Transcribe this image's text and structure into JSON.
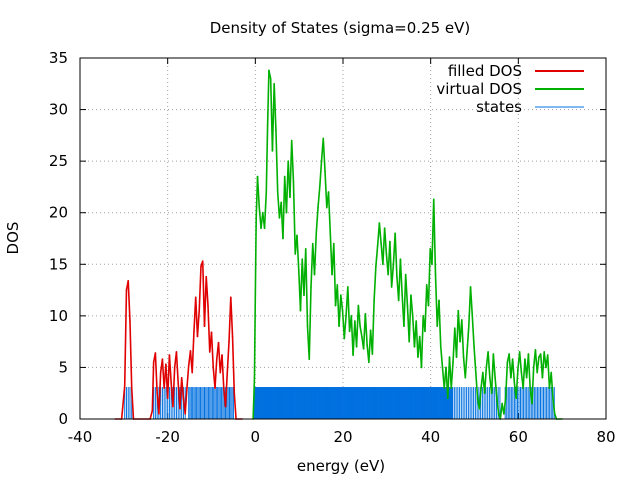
{
  "chart_data": {
    "type": "line",
    "title": "Density of States (sigma=0.25 eV)",
    "xlabel": "energy (eV)",
    "ylabel": "DOS",
    "xlim": [
      -40,
      80
    ],
    "ylim": [
      0,
      35
    ],
    "x_ticks": [
      -40,
      -20,
      0,
      20,
      40,
      60,
      80
    ],
    "y_ticks": [
      0,
      5,
      10,
      15,
      20,
      25,
      30,
      35
    ],
    "grid": true,
    "legend_position": "top-right",
    "series": [
      {
        "name": "filled DOS",
        "color": "#e00000",
        "style": "line",
        "points": [
          [
            -32,
            0
          ],
          [
            -30.5,
            0
          ],
          [
            -29.8,
            3.2
          ],
          [
            -29.4,
            12.5
          ],
          [
            -29.0,
            13.4
          ],
          [
            -28.6,
            9.5
          ],
          [
            -28.2,
            3
          ],
          [
            -27.8,
            0
          ],
          [
            -24,
            0
          ],
          [
            -23.5,
            0.8
          ],
          [
            -23.2,
            5.5
          ],
          [
            -22.8,
            6.4
          ],
          [
            -22.4,
            2.5
          ],
          [
            -22,
            0.5
          ],
          [
            -21.6,
            4.5
          ],
          [
            -21.2,
            5.8
          ],
          [
            -20.8,
            3
          ],
          [
            -20.4,
            5.3
          ],
          [
            -20.0,
            2
          ],
          [
            -19.6,
            6.2
          ],
          [
            -19.2,
            3.5
          ],
          [
            -18.8,
            1.2
          ],
          [
            -18.4,
            5
          ],
          [
            -18.0,
            6.5
          ],
          [
            -17.6,
            3.5
          ],
          [
            -17.2,
            1
          ],
          [
            -16.8,
            4
          ],
          [
            -16.4,
            2
          ],
          [
            -16.0,
            0.5
          ],
          [
            -15.6,
            3
          ],
          [
            -15.2,
            5.2
          ],
          [
            -14.8,
            6.6
          ],
          [
            -14.4,
            4.5
          ],
          [
            -14.0,
            8.5
          ],
          [
            -13.6,
            11.8
          ],
          [
            -13.2,
            8
          ],
          [
            -12.8,
            10.5
          ],
          [
            -12.4,
            14.8
          ],
          [
            -12.0,
            15.3
          ],
          [
            -11.6,
            9
          ],
          [
            -11.2,
            13.8
          ],
          [
            -10.8,
            11
          ],
          [
            -10.4,
            6.5
          ],
          [
            -10.0,
            8.4
          ],
          [
            -9.6,
            5
          ],
          [
            -9.2,
            3
          ],
          [
            -8.8,
            5.8
          ],
          [
            -8.4,
            7.4
          ],
          [
            -8.0,
            4.5
          ],
          [
            -7.6,
            6.2
          ],
          [
            -7.2,
            3
          ],
          [
            -6.8,
            1.2
          ],
          [
            -6.4,
            4.5
          ],
          [
            -6.0,
            7.5
          ],
          [
            -5.6,
            11.8
          ],
          [
            -5.2,
            8
          ],
          [
            -4.8,
            2.5
          ],
          [
            -4.4,
            0
          ],
          [
            -3,
            0
          ]
        ]
      },
      {
        "name": "virtual DOS",
        "color": "#00b000",
        "style": "line",
        "points": [
          [
            -0.5,
            0
          ],
          [
            -0.2,
            4
          ],
          [
            0.0,
            12
          ],
          [
            0.2,
            19.5
          ],
          [
            0.5,
            23.5
          ],
          [
            0.9,
            20.5
          ],
          [
            1.3,
            18.5
          ],
          [
            1.7,
            20
          ],
          [
            2.1,
            18.5
          ],
          [
            2.5,
            22
          ],
          [
            2.8,
            28.5
          ],
          [
            3.1,
            33.8
          ],
          [
            3.5,
            33
          ],
          [
            3.9,
            26
          ],
          [
            4.3,
            32.5
          ],
          [
            4.7,
            28
          ],
          [
            5.1,
            22
          ],
          [
            5.5,
            19.5
          ],
          [
            5.9,
            21
          ],
          [
            6.3,
            17.5
          ],
          [
            6.7,
            23.5
          ],
          [
            7.1,
            20
          ],
          [
            7.5,
            25
          ],
          [
            7.9,
            21.5
          ],
          [
            8.3,
            27
          ],
          [
            8.7,
            23
          ],
          [
            9.1,
            16
          ],
          [
            9.5,
            17.8
          ],
          [
            9.9,
            14.5
          ],
          [
            10.3,
            10.5
          ],
          [
            10.7,
            15.5
          ],
          [
            11.1,
            12
          ],
          [
            11.5,
            16.5
          ],
          [
            11.9,
            9
          ],
          [
            12.3,
            5.8
          ],
          [
            12.7,
            12.8
          ],
          [
            13.1,
            17
          ],
          [
            13.5,
            14
          ],
          [
            13.9,
            18
          ],
          [
            14.3,
            20.5
          ],
          [
            14.7,
            22.5
          ],
          [
            15.1,
            25
          ],
          [
            15.5,
            27.2
          ],
          [
            15.9,
            24
          ],
          [
            16.3,
            20.5
          ],
          [
            16.7,
            22
          ],
          [
            17.1,
            18
          ],
          [
            17.5,
            14
          ],
          [
            17.9,
            17
          ],
          [
            18.3,
            11
          ],
          [
            18.7,
            13
          ],
          [
            19.1,
            9
          ],
          [
            19.5,
            12
          ],
          [
            19.9,
            10.5
          ],
          [
            20.3,
            7.8
          ],
          [
            20.7,
            10
          ],
          [
            21.1,
            12.8
          ],
          [
            21.5,
            8.5
          ],
          [
            21.9,
            10
          ],
          [
            22.3,
            6.2
          ],
          [
            22.7,
            9.5
          ],
          [
            23.1,
            7
          ],
          [
            23.5,
            11
          ],
          [
            23.9,
            9
          ],
          [
            24.3,
            8
          ],
          [
            24.7,
            6.8
          ],
          [
            25.1,
            10.2
          ],
          [
            25.5,
            7.2
          ],
          [
            25.9,
            5.5
          ],
          [
            26.3,
            8.6
          ],
          [
            26.7,
            6.3
          ],
          [
            27.1,
            11.5
          ],
          [
            27.5,
            14.8
          ],
          [
            27.9,
            16.8
          ],
          [
            28.3,
            19
          ],
          [
            28.7,
            17
          ],
          [
            29.1,
            15
          ],
          [
            29.5,
            18.5
          ],
          [
            29.9,
            16
          ],
          [
            30.3,
            14
          ],
          [
            30.7,
            17.2
          ],
          [
            31.1,
            12.8
          ],
          [
            31.5,
            15
          ],
          [
            31.9,
            18
          ],
          [
            32.3,
            13.8
          ],
          [
            32.7,
            11.5
          ],
          [
            33.1,
            15.5
          ],
          [
            33.5,
            12
          ],
          [
            33.9,
            9
          ],
          [
            34.3,
            14
          ],
          [
            34.7,
            11
          ],
          [
            35.1,
            7.5
          ],
          [
            35.5,
            12
          ],
          [
            35.9,
            10
          ],
          [
            36.3,
            7
          ],
          [
            36.7,
            9.5
          ],
          [
            37.1,
            6
          ],
          [
            37.5,
            8
          ],
          [
            37.9,
            5
          ],
          [
            38.3,
            10
          ],
          [
            38.7,
            8.5
          ],
          [
            39.1,
            13
          ],
          [
            39.5,
            11
          ],
          [
            39.9,
            16.5
          ],
          [
            40.3,
            15
          ],
          [
            40.7,
            21.3
          ],
          [
            41.1,
            14
          ],
          [
            41.5,
            9
          ],
          [
            41.9,
            11.5
          ],
          [
            42.3,
            7
          ],
          [
            42.7,
            5
          ],
          [
            43.1,
            3
          ],
          [
            43.5,
            5
          ],
          [
            43.9,
            2
          ],
          [
            44.3,
            6
          ],
          [
            44.7,
            3
          ],
          [
            45.1,
            5.5
          ],
          [
            45.5,
            8.8
          ],
          [
            45.9,
            6
          ],
          [
            46.3,
            10.5
          ],
          [
            46.7,
            7.5
          ],
          [
            47.1,
            9.6
          ],
          [
            47.5,
            6
          ],
          [
            47.9,
            4
          ],
          [
            48.3,
            6.5
          ],
          [
            48.7,
            9
          ],
          [
            49.1,
            12.8
          ],
          [
            49.5,
            10
          ],
          [
            49.9,
            7
          ],
          [
            50.3,
            4.5
          ],
          [
            50.7,
            2
          ],
          [
            51.1,
            1
          ],
          [
            51.5,
            3
          ],
          [
            51.9,
            4.5
          ],
          [
            52.3,
            2.5
          ],
          [
            52.7,
            5
          ],
          [
            53.1,
            6.5
          ],
          [
            53.5,
            4
          ],
          [
            53.9,
            2.5
          ],
          [
            54.3,
            6.3
          ],
          [
            54.7,
            4
          ],
          [
            55.1,
            2
          ],
          [
            55.5,
            0.5
          ],
          [
            55.9,
            0
          ],
          [
            56.3,
            1.5
          ],
          [
            56.7,
            0.5
          ],
          [
            57.1,
            2
          ],
          [
            57.5,
            5.5
          ],
          [
            57.9,
            6.3
          ],
          [
            58.3,
            4
          ],
          [
            58.7,
            5.8
          ],
          [
            59.1,
            3.5
          ],
          [
            59.5,
            2
          ],
          [
            59.9,
            4.8
          ],
          [
            60.3,
            6.5
          ],
          [
            60.7,
            4.5
          ],
          [
            61.1,
            3
          ],
          [
            61.5,
            5.8
          ],
          [
            61.9,
            4
          ],
          [
            62.3,
            6.3
          ],
          [
            62.7,
            3
          ],
          [
            63.1,
            1.5
          ],
          [
            63.5,
            5
          ],
          [
            63.9,
            6.7
          ],
          [
            64.3,
            4.5
          ],
          [
            64.7,
            6
          ],
          [
            65.1,
            6.3
          ],
          [
            65.5,
            4
          ],
          [
            65.9,
            6.5
          ],
          [
            66.3,
            5
          ],
          [
            66.7,
            6.2
          ],
          [
            67.1,
            3
          ],
          [
            67.5,
            4.5
          ],
          [
            67.9,
            2
          ],
          [
            68.3,
            0.5
          ],
          [
            68.7,
            0
          ],
          [
            70,
            0
          ]
        ]
      },
      {
        "name": "states",
        "color": "#0070e0",
        "style": "impulses",
        "height": 3.1,
        "clusters": [
          [
            -29.8,
            -28.2,
            0.4
          ],
          [
            -23.2,
            -16.0,
            0.4
          ],
          [
            -15.2,
            -5.0,
            0.3
          ],
          [
            -0.3,
            45.0,
            0.15
          ],
          [
            45.0,
            56.0,
            0.4
          ],
          [
            57.0,
            68.5,
            0.35
          ]
        ]
      }
    ]
  }
}
